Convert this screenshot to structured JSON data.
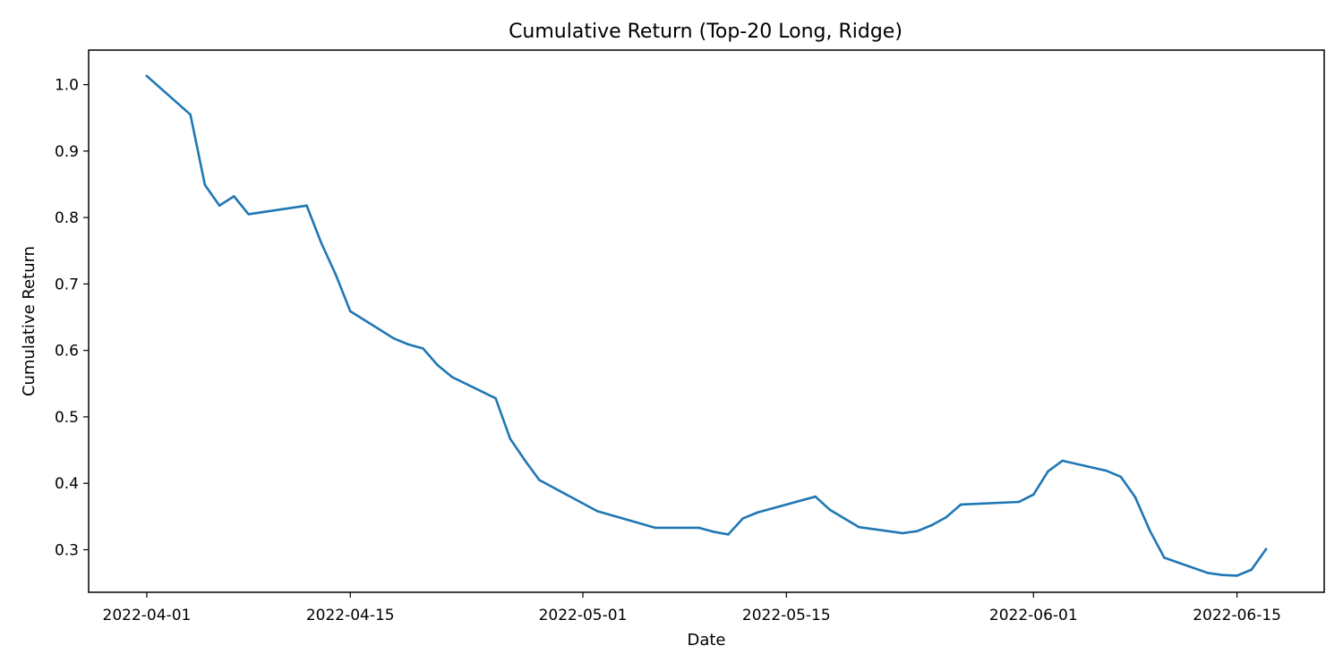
{
  "chart_data": {
    "type": "line",
    "title": "Cumulative Return (Top-20 Long, Ridge)",
    "xlabel": "Date",
    "ylabel": "Cumulative Return",
    "grid": false,
    "xlim": [
      "2022-03-28",
      "2022-06-21"
    ],
    "ylim": [
      0.236,
      1.052
    ],
    "x_ticks": [
      "2022-04-01",
      "2022-04-15",
      "2022-05-01",
      "2022-05-15",
      "2022-06-01",
      "2022-06-15"
    ],
    "y_ticks": [
      "0.3",
      "0.4",
      "0.5",
      "0.6",
      "0.7",
      "0.8",
      "0.9",
      "1.0"
    ],
    "color": "#1f77b4",
    "series": [
      {
        "name": "Cumulative Return",
        "x": [
          "2022-04-01",
          "2022-04-04",
          "2022-04-05",
          "2022-04-06",
          "2022-04-07",
          "2022-04-08",
          "2022-04-12",
          "2022-04-13",
          "2022-04-14",
          "2022-04-15",
          "2022-04-18",
          "2022-04-19",
          "2022-04-20",
          "2022-04-21",
          "2022-04-22",
          "2022-04-25",
          "2022-04-26",
          "2022-04-27",
          "2022-04-28",
          "2022-05-02",
          "2022-05-06",
          "2022-05-09",
          "2022-05-10",
          "2022-05-11",
          "2022-05-12",
          "2022-05-13",
          "2022-05-17",
          "2022-05-18",
          "2022-05-20",
          "2022-05-23",
          "2022-05-24",
          "2022-05-25",
          "2022-05-26",
          "2022-05-27",
          "2022-05-31",
          "2022-06-01",
          "2022-06-02",
          "2022-06-03",
          "2022-06-06",
          "2022-06-07",
          "2022-06-08",
          "2022-06-09",
          "2022-06-10",
          "2022-06-13",
          "2022-06-14",
          "2022-06-15",
          "2022-06-16",
          "2022-06-17"
        ],
        "values": [
          1.013,
          0.955,
          0.849,
          0.818,
          0.832,
          0.805,
          0.818,
          0.762,
          0.714,
          0.659,
          0.618,
          0.609,
          0.603,
          0.578,
          0.56,
          0.528,
          0.467,
          0.435,
          0.405,
          0.358,
          0.333,
          0.333,
          0.327,
          0.323,
          0.347,
          0.356,
          0.38,
          0.36,
          0.334,
          0.325,
          0.328,
          0.337,
          0.349,
          0.368,
          0.372,
          0.383,
          0.418,
          0.434,
          0.419,
          0.41,
          0.379,
          0.329,
          0.288,
          0.265,
          0.262,
          0.261,
          0.27,
          0.301
        ]
      }
    ]
  }
}
